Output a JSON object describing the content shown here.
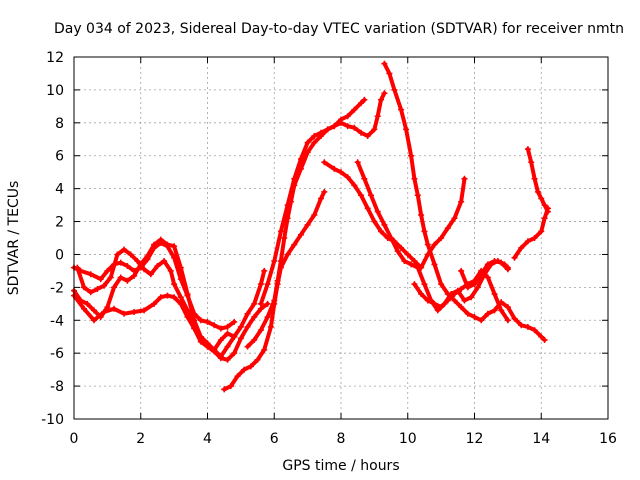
{
  "chart_data": {
    "type": "scatter",
    "title": "Day 034 of 2023, Sidereal Day-to-day VTEC variation (SDTVAR) for receiver nmtn",
    "xlabel": "GPS time / hours",
    "ylabel": "SDTVAR / TECUs",
    "xlim": [
      0,
      16
    ],
    "ylim": [
      -10,
      12
    ],
    "xticks": [
      0,
      2,
      4,
      6,
      8,
      10,
      12,
      14,
      16
    ],
    "yticks": [
      -10,
      -8,
      -6,
      -4,
      -2,
      0,
      2,
      4,
      6,
      8,
      10,
      12
    ],
    "grid": true,
    "marker": "+",
    "color": "#ff0000",
    "series": [
      {
        "points": [
          [
            0.0,
            -0.8
          ],
          [
            0.2,
            -1.0
          ],
          [
            0.5,
            -1.2
          ],
          [
            0.8,
            -1.5
          ],
          [
            1.0,
            -1.0
          ],
          [
            1.2,
            -0.6
          ],
          [
            1.4,
            -0.5
          ],
          [
            1.6,
            -0.7
          ],
          [
            1.8,
            -1.0
          ],
          [
            2.0,
            -0.8
          ],
          [
            2.2,
            -0.3
          ],
          [
            2.4,
            0.4
          ],
          [
            2.6,
            0.7
          ],
          [
            2.8,
            0.5
          ],
          [
            3.0,
            -0.2
          ],
          [
            3.2,
            -1.5
          ],
          [
            3.4,
            -2.5
          ],
          [
            3.6,
            -3.6
          ],
          [
            3.8,
            -4.0
          ],
          [
            4.0,
            -4.1
          ],
          [
            4.2,
            -4.3
          ],
          [
            4.4,
            -4.5
          ],
          [
            4.6,
            -4.4
          ],
          [
            4.8,
            -4.1
          ]
        ]
      },
      {
        "points": [
          [
            0.0,
            -2.2
          ],
          [
            0.2,
            -2.8
          ],
          [
            0.4,
            -3.0
          ],
          [
            0.6,
            -3.4
          ],
          [
            0.8,
            -3.8
          ],
          [
            1.0,
            -3.2
          ],
          [
            1.2,
            -2.0
          ],
          [
            1.4,
            -1.4
          ],
          [
            1.6,
            -1.6
          ],
          [
            1.8,
            -1.3
          ],
          [
            2.0,
            -0.6
          ],
          [
            2.2,
            -0.1
          ],
          [
            2.4,
            0.6
          ],
          [
            2.6,
            0.9
          ],
          [
            2.8,
            0.6
          ],
          [
            3.0,
            0.5
          ],
          [
            3.2,
            -0.8
          ],
          [
            3.4,
            -2.4
          ],
          [
            3.6,
            -4.0
          ],
          [
            3.8,
            -5.0
          ],
          [
            4.0,
            -5.4
          ],
          [
            4.2,
            -5.8
          ],
          [
            4.4,
            -6.2
          ],
          [
            4.6,
            -5.6
          ],
          [
            4.8,
            -5.0
          ],
          [
            5.0,
            -4.4
          ],
          [
            5.2,
            -3.6
          ],
          [
            5.4,
            -3.0
          ],
          [
            5.6,
            -1.8
          ],
          [
            5.7,
            -1.0
          ]
        ]
      },
      {
        "points": [
          [
            0.0,
            -2.5
          ],
          [
            0.3,
            -3.3
          ],
          [
            0.6,
            -4.0
          ],
          [
            0.9,
            -3.5
          ],
          [
            1.2,
            -3.3
          ],
          [
            1.5,
            -3.6
          ],
          [
            1.8,
            -3.5
          ],
          [
            2.1,
            -3.4
          ],
          [
            2.4,
            -3.0
          ],
          [
            2.6,
            -2.6
          ],
          [
            2.8,
            -2.5
          ],
          [
            3.0,
            -2.6
          ],
          [
            3.2,
            -3.0
          ],
          [
            3.4,
            -3.8
          ],
          [
            3.6,
            -4.5
          ],
          [
            3.8,
            -5.3
          ],
          [
            4.0,
            -5.6
          ],
          [
            4.2,
            -5.9
          ],
          [
            4.4,
            -6.3
          ],
          [
            4.6,
            -6.4
          ],
          [
            4.8,
            -6.0
          ],
          [
            5.0,
            -5.1
          ],
          [
            5.2,
            -4.4
          ],
          [
            5.4,
            -3.8
          ],
          [
            5.6,
            -3.3
          ],
          [
            5.8,
            -3.0
          ]
        ]
      },
      {
        "points": [
          [
            0.1,
            -0.8
          ],
          [
            0.3,
            -2.0
          ],
          [
            0.5,
            -2.3
          ],
          [
            0.7,
            -2.1
          ],
          [
            0.9,
            -1.9
          ],
          [
            1.1,
            -1.4
          ],
          [
            1.3,
            0.0
          ],
          [
            1.5,
            0.3
          ],
          [
            1.7,
            0.0
          ],
          [
            1.9,
            -0.4
          ],
          [
            2.1,
            -0.9
          ],
          [
            2.3,
            -1.2
          ],
          [
            2.5,
            -0.7
          ],
          [
            2.7,
            -0.4
          ],
          [
            2.9,
            -1.0
          ],
          [
            3.0,
            -1.8
          ],
          [
            3.2,
            -2.6
          ],
          [
            3.4,
            -3.4
          ],
          [
            3.6,
            -4.4
          ],
          [
            3.8,
            -5.0
          ],
          [
            4.0,
            -5.6
          ],
          [
            4.2,
            -5.8
          ],
          [
            4.4,
            -5.2
          ],
          [
            4.6,
            -4.8
          ],
          [
            4.8,
            -5.0
          ]
        ]
      },
      {
        "points": [
          [
            4.5,
            -8.2
          ],
          [
            4.7,
            -8.0
          ],
          [
            4.9,
            -7.4
          ],
          [
            5.1,
            -7.0
          ],
          [
            5.3,
            -6.8
          ],
          [
            5.5,
            -6.4
          ],
          [
            5.7,
            -5.8
          ],
          [
            5.9,
            -4.4
          ],
          [
            6.0,
            -3.0
          ],
          [
            6.1,
            -1.8
          ],
          [
            6.2,
            -0.8
          ],
          [
            6.4,
            0.0
          ],
          [
            6.6,
            0.6
          ],
          [
            6.8,
            1.2
          ],
          [
            7.0,
            1.8
          ],
          [
            7.2,
            2.4
          ],
          [
            7.4,
            3.4
          ],
          [
            7.5,
            3.8
          ]
        ]
      },
      {
        "points": [
          [
            5.2,
            -5.6
          ],
          [
            5.4,
            -5.2
          ],
          [
            5.6,
            -4.6
          ],
          [
            5.8,
            -3.8
          ],
          [
            6.0,
            -2.8
          ],
          [
            6.1,
            -1.6
          ],
          [
            6.2,
            -0.4
          ],
          [
            6.3,
            1.0
          ],
          [
            6.4,
            2.2
          ],
          [
            6.5,
            3.2
          ],
          [
            6.6,
            4.2
          ],
          [
            6.8,
            5.2
          ],
          [
            7.0,
            6.2
          ],
          [
            7.2,
            6.8
          ],
          [
            7.4,
            7.2
          ],
          [
            7.6,
            7.6
          ],
          [
            7.8,
            7.8
          ],
          [
            8.0,
            8.2
          ],
          [
            8.2,
            8.4
          ],
          [
            8.4,
            8.8
          ],
          [
            8.6,
            9.2
          ],
          [
            8.7,
            9.4
          ]
        ]
      },
      {
        "points": [
          [
            5.6,
            -3.0
          ],
          [
            5.8,
            -1.8
          ],
          [
            6.0,
            -0.4
          ],
          [
            6.2,
            1.4
          ],
          [
            6.4,
            3.0
          ],
          [
            6.6,
            4.6
          ],
          [
            6.8,
            5.8
          ],
          [
            7.0,
            6.8
          ],
          [
            7.2,
            7.2
          ],
          [
            7.4,
            7.4
          ],
          [
            7.6,
            7.6
          ],
          [
            7.8,
            7.8
          ],
          [
            8.0,
            8.0
          ],
          [
            8.2,
            7.8
          ],
          [
            8.4,
            7.7
          ],
          [
            8.6,
            7.4
          ],
          [
            8.8,
            7.2
          ],
          [
            9.0,
            7.6
          ],
          [
            9.1,
            8.4
          ],
          [
            9.2,
            9.4
          ],
          [
            9.3,
            9.8
          ]
        ]
      },
      {
        "points": [
          [
            9.3,
            11.6
          ],
          [
            9.45,
            11.0
          ],
          [
            9.6,
            10.0
          ],
          [
            9.8,
            8.8
          ],
          [
            9.95,
            7.6
          ],
          [
            10.1,
            6.0
          ],
          [
            10.2,
            4.6
          ],
          [
            10.3,
            3.6
          ],
          [
            10.4,
            2.4
          ],
          [
            10.5,
            1.4
          ],
          [
            10.6,
            0.6
          ],
          [
            10.8,
            -0.6
          ],
          [
            11.0,
            -1.8
          ],
          [
            11.2,
            -2.4
          ],
          [
            11.4,
            -2.8
          ],
          [
            11.6,
            -3.2
          ],
          [
            11.8,
            -3.6
          ],
          [
            12.0,
            -3.8
          ],
          [
            12.2,
            -4.0
          ],
          [
            12.4,
            -3.6
          ],
          [
            12.6,
            -3.4
          ],
          [
            12.8,
            -2.9
          ],
          [
            13.0,
            -3.2
          ],
          [
            13.2,
            -3.9
          ],
          [
            13.4,
            -4.3
          ],
          [
            13.6,
            -4.4
          ],
          [
            13.8,
            -4.6
          ],
          [
            14.0,
            -5.0
          ],
          [
            14.1,
            -5.2
          ]
        ]
      },
      {
        "points": [
          [
            7.5,
            5.6
          ],
          [
            7.8,
            5.2
          ],
          [
            8.0,
            5.0
          ],
          [
            8.2,
            4.7
          ],
          [
            8.4,
            4.2
          ],
          [
            8.6,
            3.6
          ],
          [
            8.8,
            2.8
          ],
          [
            9.0,
            2.0
          ],
          [
            9.2,
            1.4
          ],
          [
            9.4,
            1.0
          ],
          [
            9.6,
            0.8
          ],
          [
            9.8,
            0.4
          ],
          [
            10.0,
            0.0
          ],
          [
            10.2,
            -0.4
          ],
          [
            10.4,
            -0.8
          ],
          [
            10.6,
            0.0
          ],
          [
            10.8,
            0.6
          ],
          [
            11.0,
            1.0
          ],
          [
            11.2,
            1.6
          ],
          [
            11.4,
            2.2
          ],
          [
            11.6,
            3.2
          ],
          [
            11.7,
            4.6
          ]
        ]
      },
      {
        "points": [
          [
            8.5,
            5.6
          ],
          [
            8.7,
            4.6
          ],
          [
            8.9,
            3.6
          ],
          [
            9.1,
            2.6
          ],
          [
            9.3,
            1.8
          ],
          [
            9.5,
            1.0
          ],
          [
            9.7,
            0.2
          ],
          [
            9.9,
            -0.4
          ],
          [
            10.1,
            -0.6
          ],
          [
            10.3,
            -0.8
          ],
          [
            10.5,
            -1.8
          ],
          [
            10.7,
            -2.8
          ],
          [
            10.9,
            -3.4
          ],
          [
            11.1,
            -3.0
          ],
          [
            11.3,
            -2.4
          ],
          [
            11.5,
            -2.2
          ],
          [
            11.7,
            -2.8
          ],
          [
            11.9,
            -2.6
          ],
          [
            12.1,
            -2.0
          ],
          [
            12.3,
            -1.2
          ],
          [
            12.5,
            -0.6
          ],
          [
            12.7,
            -0.4
          ],
          [
            12.9,
            -0.6
          ],
          [
            13.0,
            -0.8
          ]
        ]
      },
      {
        "points": [
          [
            10.2,
            -1.8
          ],
          [
            10.4,
            -2.4
          ],
          [
            10.6,
            -2.8
          ],
          [
            10.8,
            -3.0
          ],
          [
            11.0,
            -3.2
          ],
          [
            11.2,
            -2.8
          ],
          [
            11.4,
            -2.4
          ],
          [
            11.6,
            -2.1
          ],
          [
            11.8,
            -1.8
          ],
          [
            12.0,
            -1.6
          ],
          [
            12.2,
            -1.0
          ],
          [
            12.4,
            -1.4
          ],
          [
            12.6,
            -2.4
          ],
          [
            12.8,
            -3.4
          ],
          [
            13.0,
            -4.0
          ]
        ]
      },
      {
        "points": [
          [
            11.6,
            -1.0
          ],
          [
            11.8,
            -2.0
          ],
          [
            12.0,
            -1.8
          ],
          [
            12.2,
            -1.2
          ],
          [
            12.4,
            -0.6
          ],
          [
            12.6,
            -0.4
          ],
          [
            12.8,
            -0.5
          ],
          [
            13.0,
            -0.9
          ]
        ]
      },
      {
        "points": [
          [
            13.2,
            -0.2
          ],
          [
            13.4,
            0.4
          ],
          [
            13.6,
            0.8
          ],
          [
            13.8,
            1.0
          ],
          [
            14.0,
            1.4
          ],
          [
            14.1,
            2.2
          ],
          [
            14.2,
            2.8
          ]
        ]
      },
      {
        "points": [
          [
            13.6,
            6.4
          ],
          [
            13.7,
            5.6
          ],
          [
            13.8,
            4.6
          ],
          [
            13.9,
            3.8
          ],
          [
            14.0,
            3.4
          ],
          [
            14.1,
            3.0
          ],
          [
            14.2,
            2.6
          ]
        ]
      }
    ]
  }
}
